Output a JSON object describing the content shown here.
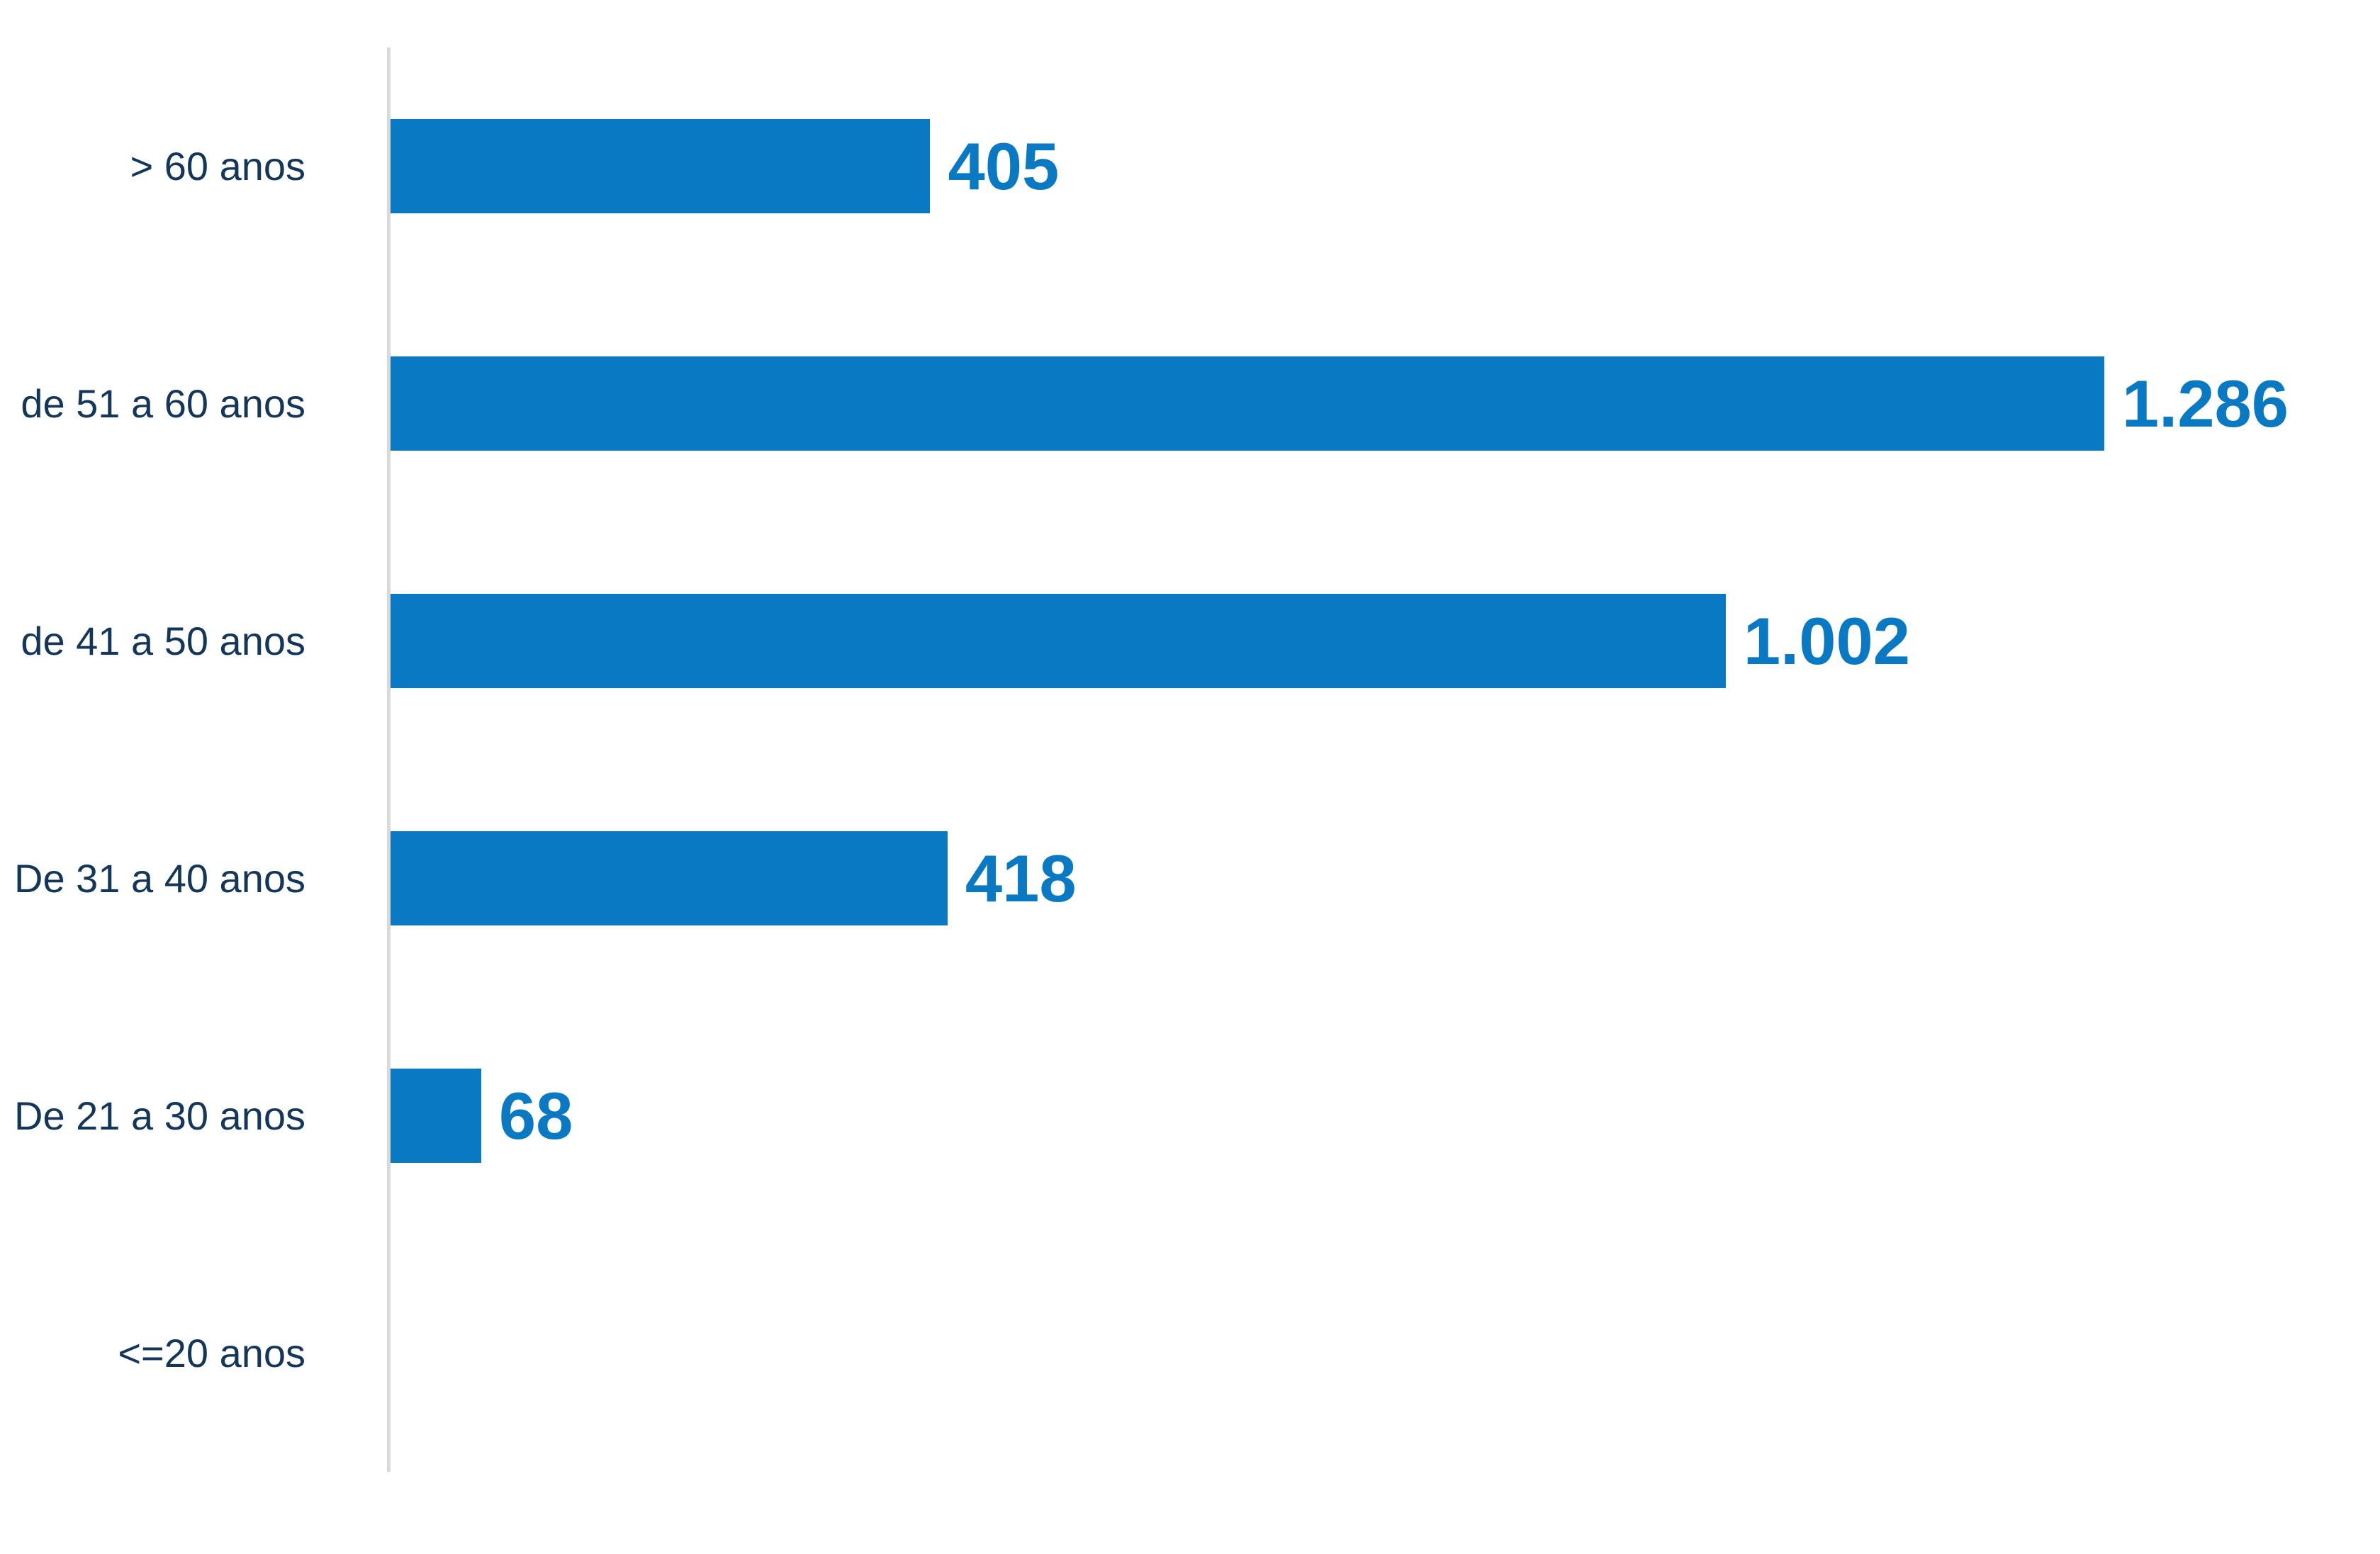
{
  "chart_data": {
    "type": "bar",
    "orientation": "horizontal",
    "title": "",
    "xlabel": "",
    "ylabel": "",
    "categories": [
      "> 60 anos",
      "de 51 a 60 anos",
      "de 41 a 50 anos",
      "De 31 a 40 anos",
      "De 21 a 30 anos",
      "<=20 anos"
    ],
    "values": [
      405,
      1286,
      1002,
      418,
      68,
      0
    ],
    "value_labels": [
      "405",
      "1.286",
      "1.002",
      "418",
      "68",
      ""
    ],
    "xlim": [
      0,
      1493
    ],
    "grid": false,
    "legend": false,
    "bar_color": "#0a79c4",
    "value_label_color": "#0a79c4",
    "category_label_color": "#13365a",
    "axis_line_color": "#d9d9d9"
  }
}
